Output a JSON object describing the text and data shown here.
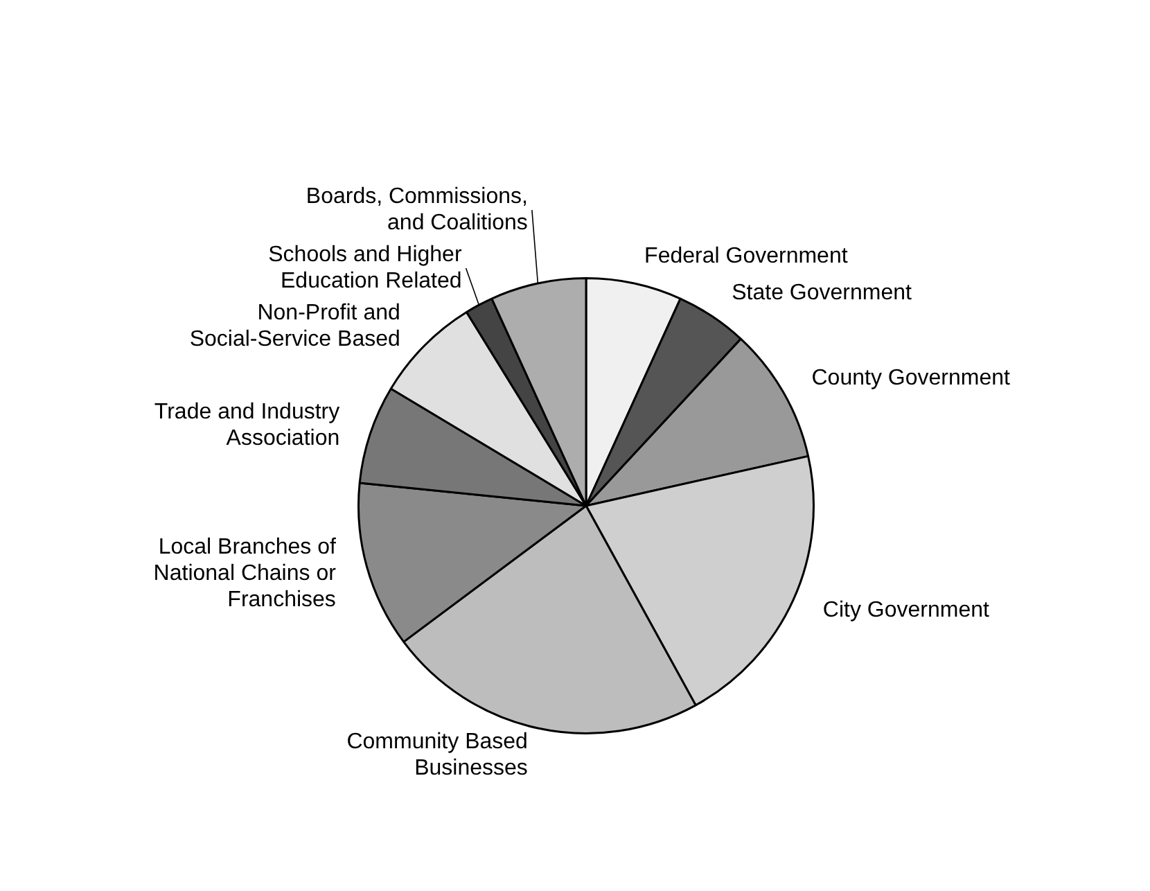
{
  "chart_data": {
    "type": "pie",
    "categories": [
      "Federal Government",
      "State Government",
      "County Government",
      "City Government",
      "Community Based Businesses",
      "Local Branches of National Chains or Franchises",
      "Trade and Industry Association",
      "Non-Profit and Social-Service Based",
      "Schools and Higher Education Related",
      "Boards, Commissions, and Coalitions"
    ],
    "values": [
      6.8,
      5.1,
      9.6,
      20.5,
      22.8,
      11.8,
      7.0,
      7.6,
      2.0,
      6.8
    ],
    "colors": [
      "#f0f0f0",
      "#555555",
      "#999999",
      "#cfcfcf",
      "#bdbdbd",
      "#8a8a8a",
      "#777777",
      "#e0e0e0",
      "#444444",
      "#adadad"
    ],
    "legend": false
  }
}
